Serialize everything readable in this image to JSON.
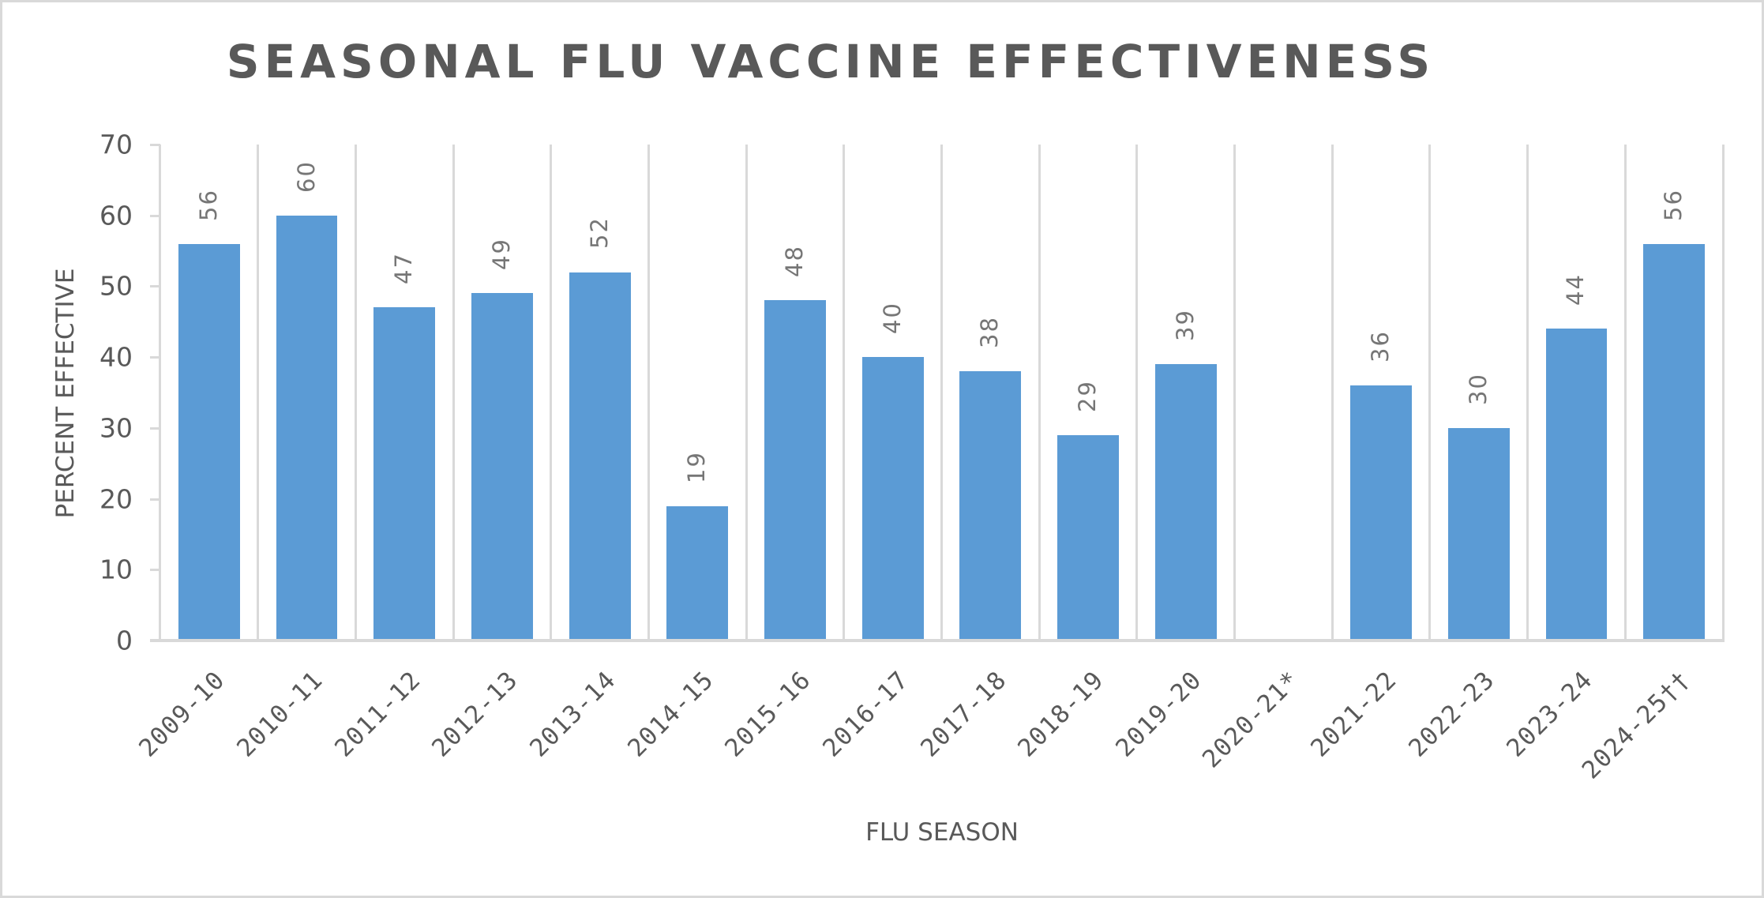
{
  "chart_data": {
    "type": "bar",
    "title": "SEASONAL FLU VACCINE EFFECTIVENESS",
    "xlabel": "FLU SEASON",
    "ylabel": "PERCENT EFFECTIVE",
    "ylim": [
      0,
      70
    ],
    "yticks": [
      0,
      10,
      20,
      30,
      40,
      50,
      60,
      70
    ],
    "grid": "vertical category separators",
    "legend": null,
    "categories": [
      "2009-10",
      "2010-11",
      "2011-12",
      "2012-13",
      "2013-14",
      "2014-15",
      "2015-16",
      "2016-17",
      "2017-18",
      "2018-19",
      "2019-20",
      "2020-21*",
      "2021-22",
      "2022-23",
      "2023-24",
      "2024-25††"
    ],
    "values": [
      56,
      60,
      47,
      49,
      52,
      19,
      48,
      40,
      38,
      29,
      39,
      null,
      36,
      30,
      44,
      56
    ],
    "data_labels": [
      "56",
      "60",
      "47",
      "49",
      "52",
      "19",
      "48",
      "40",
      "38",
      "29",
      "39",
      "",
      "36",
      "30",
      "44",
      "56"
    ],
    "colors": {
      "bar": "#5B9BD5",
      "grid": "#D9D9D9",
      "text": "#595959",
      "data_label": "#767676"
    }
  }
}
